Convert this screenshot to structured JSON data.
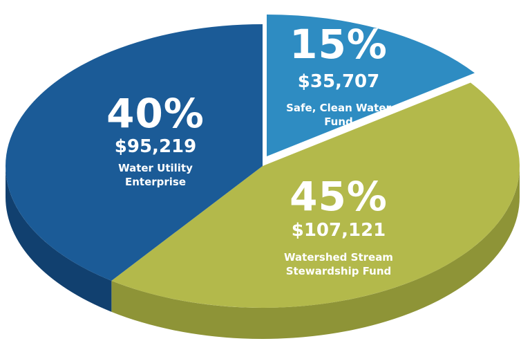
{
  "chart_data": {
    "type": "pie",
    "categories": [
      "Water Utility Enterprise",
      "Safe, Clean Water Fund",
      "Watershed Stream Stewardship Fund"
    ],
    "values": [
      40,
      15,
      45
    ],
    "value_labels": [
      "40%",
      "15%",
      "45%"
    ],
    "amounts": [
      95219,
      35707,
      107121
    ],
    "amount_labels": [
      "$95,219",
      "$35,707",
      "$107,121"
    ],
    "colors": [
      "#1b5b97",
      "#2e8cc2",
      "#b3b94b"
    ],
    "side_colors": [
      "#11406f",
      "#22729f",
      "#8e9437"
    ]
  }
}
